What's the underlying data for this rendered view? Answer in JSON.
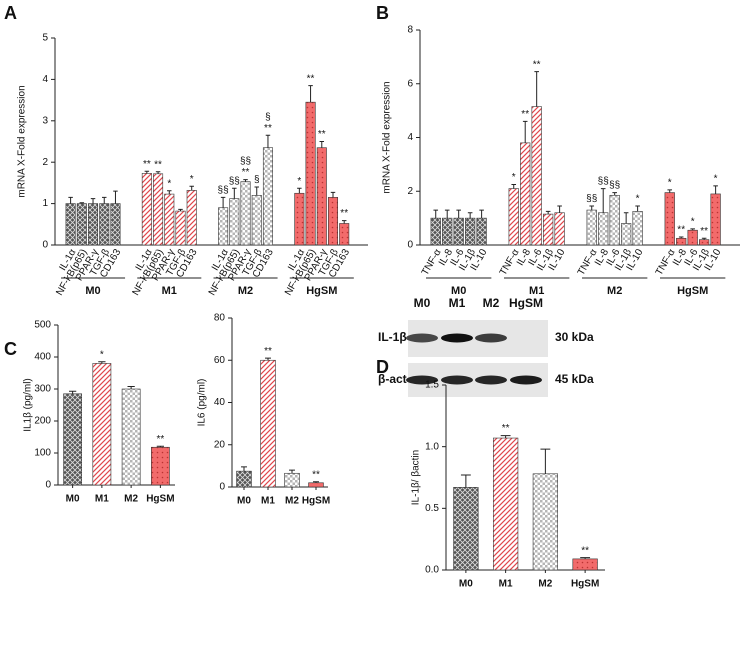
{
  "chart_data": [
    {
      "type": "bar",
      "panel": "A",
      "ylabel": "mRNA X-Fold expression",
      "ylim": [
        0,
        5
      ],
      "yticks": [
        0,
        1,
        2,
        3,
        4,
        5
      ],
      "categories": [
        "IL-1α",
        "NF-kB(p65)",
        "PPAR-γ",
        "TGF-β",
        "CD163"
      ],
      "series": [
        {
          "name": "M0",
          "color": "#555555",
          "fill_style": "crosshatch",
          "values": [
            1.0,
            1.0,
            1.0,
            1.0,
            1.0
          ],
          "errors": [
            0.15,
            0.02,
            0.12,
            0.15,
            0.3
          ],
          "annotations": [
            [],
            [],
            [],
            [],
            []
          ]
        },
        {
          "name": "M1",
          "color": "#e0474c",
          "fill_style": "diagonal",
          "values": [
            1.73,
            1.72,
            1.23,
            0.82,
            1.32
          ],
          "errors": [
            0.05,
            0.05,
            0.08,
            0.04,
            0.1
          ],
          "annotations": [
            [
              "**"
            ],
            [
              "**"
            ],
            [
              "*"
            ],
            [],
            [
              "*"
            ]
          ]
        },
        {
          "name": "M2",
          "color": "#b5b5b5",
          "fill_style": "checker",
          "values": [
            0.9,
            1.12,
            1.53,
            1.2,
            2.35
          ],
          "errors": [
            0.25,
            0.25,
            0.05,
            0.2,
            0.3
          ],
          "annotations": [
            [
              "§§"
            ],
            [
              "§§"
            ],
            [
              "§§",
              "**"
            ],
            [
              "§"
            ],
            [
              "§",
              "**"
            ]
          ]
        },
        {
          "name": "HgSM",
          "color": "#f26b6b",
          "fill_style": "dots",
          "values": [
            1.25,
            3.45,
            2.35,
            1.15,
            0.52
          ],
          "errors": [
            0.12,
            0.4,
            0.15,
            0.12,
            0.07
          ],
          "annotations": [
            [
              "*"
            ],
            [
              "**"
            ],
            [
              "**"
            ],
            [],
            [
              "**"
            ]
          ]
        }
      ]
    },
    {
      "type": "bar",
      "panel": "B",
      "ylabel": "mRNA X-Fold expression",
      "ylim": [
        0,
        8
      ],
      "yticks": [
        0,
        2,
        4,
        6,
        8
      ],
      "categories": [
        "TNF-α",
        "IL-8",
        "IL-6",
        "IL-1β",
        "IL-10"
      ],
      "series": [
        {
          "name": "M0",
          "color": "#555555",
          "fill_style": "crosshatch",
          "values": [
            1.0,
            1.0,
            1.0,
            1.0,
            1.0
          ],
          "errors": [
            0.3,
            0.3,
            0.3,
            0.2,
            0.3
          ],
          "annotations": [
            [],
            [],
            [],
            [],
            []
          ]
        },
        {
          "name": "M1",
          "color": "#e0474c",
          "fill_style": "diagonal",
          "values": [
            2.1,
            3.8,
            5.15,
            1.15,
            1.2
          ],
          "errors": [
            0.15,
            0.8,
            1.3,
            0.1,
            0.25
          ],
          "annotations": [
            [
              "*"
            ],
            [
              "**"
            ],
            [
              "**"
            ],
            [],
            []
          ]
        },
        {
          "name": "M2",
          "color": "#b5b5b5",
          "fill_style": "checker",
          "values": [
            1.3,
            1.2,
            1.85,
            0.8,
            1.25
          ],
          "errors": [
            0.15,
            0.9,
            0.1,
            0.4,
            0.2
          ],
          "annotations": [
            [
              "§§"
            ],
            [
              "§§"
            ],
            [
              "§§"
            ],
            [],
            [
              "*"
            ]
          ]
        },
        {
          "name": "HgSM",
          "color": "#f26b6b",
          "fill_style": "dots",
          "values": [
            1.95,
            0.25,
            0.55,
            0.2,
            1.9
          ],
          "errors": [
            0.1,
            0.05,
            0.05,
            0.05,
            0.3
          ],
          "annotations": [
            [
              "*"
            ],
            [
              "**"
            ],
            [
              "*"
            ],
            [
              "**"
            ],
            [
              "*"
            ]
          ]
        }
      ]
    },
    {
      "type": "bar",
      "panel": "C",
      "ylabel": "IL1β  (pg/ml)",
      "ylim": [
        0,
        500
      ],
      "yticks": [
        0,
        100,
        200,
        300,
        400,
        500
      ],
      "categories": [
        "M0",
        "M1",
        "M2",
        "HgSM"
      ],
      "values": [
        285,
        380,
        300,
        118
      ],
      "errors": [
        8,
        5,
        8,
        3
      ],
      "annotations": [
        [],
        [
          "*"
        ],
        [],
        [
          "**"
        ]
      ],
      "colors": [
        "#555555",
        "#e0474c",
        "#b5b5b5",
        "#f26b6b"
      ],
      "fill_styles": [
        "crosshatch",
        "diagonal",
        "checker",
        "dots"
      ]
    },
    {
      "type": "bar",
      "ylabel": "IL6  (pg/ml)",
      "ylim": [
        0,
        80
      ],
      "yticks": [
        0,
        20,
        40,
        60,
        80
      ],
      "categories": [
        "M0",
        "M1",
        "M2",
        "HgSM"
      ],
      "values": [
        7.5,
        60,
        6.5,
        2
      ],
      "errors": [
        2,
        1,
        1.5,
        0.5
      ],
      "annotations": [
        [],
        [
          "**"
        ],
        [],
        [
          "**"
        ]
      ],
      "colors": [
        "#555555",
        "#e0474c",
        "#b5b5b5",
        "#f26b6b"
      ],
      "fill_styles": [
        "crosshatch",
        "diagonal",
        "checker",
        "dots"
      ]
    },
    {
      "type": "bar",
      "panel": "D",
      "ylabel": "IL-1β/ βactin",
      "ylim": [
        0,
        1.5
      ],
      "yticks": [
        {
          "value": 0,
          "label": "0.0"
        },
        {
          "value": 0.5,
          "label": "0.5"
        },
        {
          "value": 1,
          "label": "1.0"
        },
        {
          "value": 1.5,
          "label": "1.5"
        }
      ],
      "categories": [
        "M0",
        "M1",
        "M2",
        "HgSM"
      ],
      "values": [
        0.67,
        1.07,
        0.78,
        0.09
      ],
      "errors": [
        0.1,
        0.02,
        0.2,
        0.01
      ],
      "annotations": [
        [],
        [
          "**"
        ],
        [],
        [
          "**"
        ]
      ],
      "colors": [
        "#555555",
        "#e0474c",
        "#b5b5b5",
        "#f26b6b"
      ],
      "fill_styles": [
        "crosshatch",
        "diagonal",
        "checker",
        "dots"
      ]
    }
  ],
  "blot": {
    "lanes": [
      "M0",
      "M1",
      "M2",
      "HgSM"
    ],
    "bands": [
      {
        "label": "IL-1β",
        "size": "30 kDa"
      },
      {
        "label": "β-act",
        "size": "45 kDa"
      }
    ]
  }
}
